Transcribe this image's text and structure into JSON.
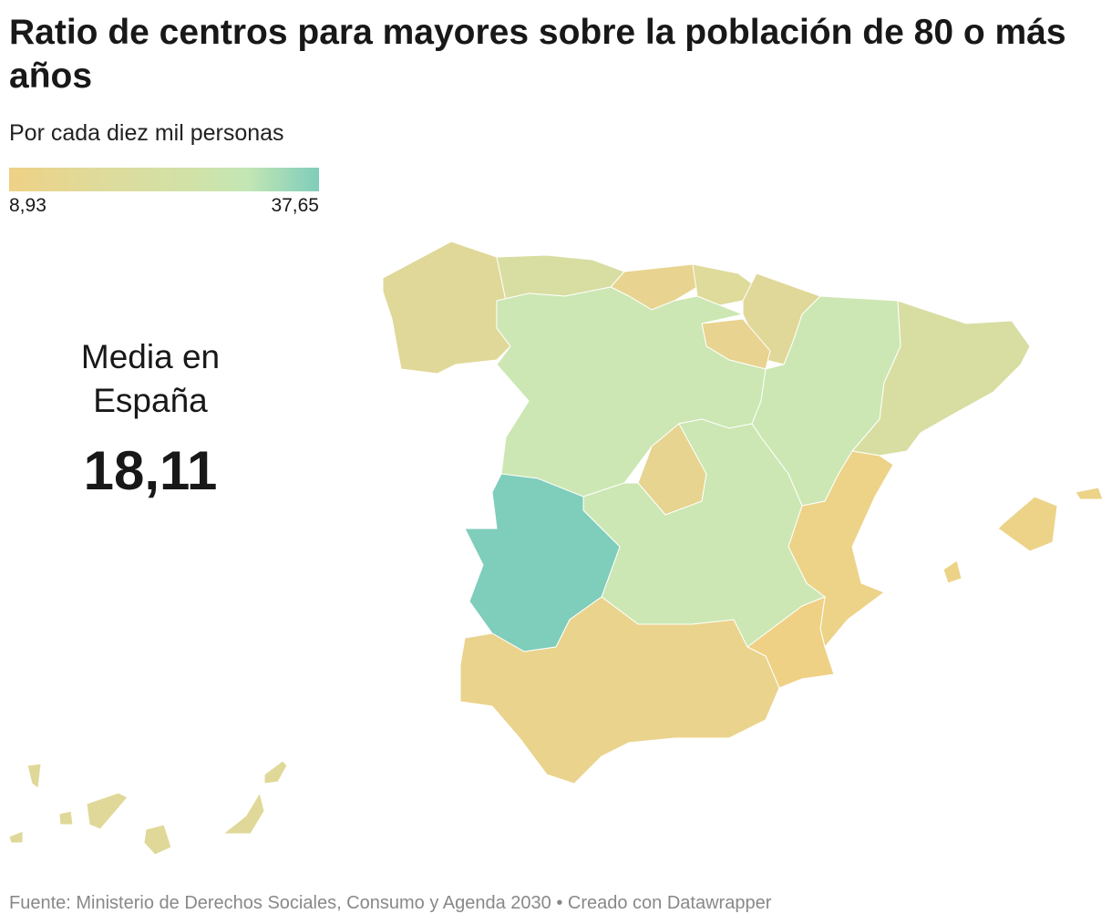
{
  "title": "Ratio de centros para mayores sobre la población de 80 o más años",
  "subtitle": "Por cada diez mil personas",
  "legend": {
    "min": "8,93",
    "max": "37,65",
    "colors": [
      "#efd186",
      "#c3e6b4",
      "#7fcdbb"
    ]
  },
  "average": {
    "label": "Media en España",
    "value": "18,11"
  },
  "regions": [
    {
      "name": "Galicia",
      "color": "#e0d898"
    },
    {
      "name": "Asturias",
      "color": "#d8dea2"
    },
    {
      "name": "Cantabria",
      "color": "#e8d490"
    },
    {
      "name": "País Vasco",
      "color": "#dedb9b"
    },
    {
      "name": "Navarra",
      "color": "#e0d898"
    },
    {
      "name": "La Rioja",
      "color": "#e8d490"
    },
    {
      "name": "Castilla y León",
      "color": "#cce7b3"
    },
    {
      "name": "Aragón",
      "color": "#cce7b3"
    },
    {
      "name": "Cataluña",
      "color": "#d8dea2"
    },
    {
      "name": "Madrid",
      "color": "#e6d490"
    },
    {
      "name": "Castilla-La Mancha",
      "color": "#cce7b3"
    },
    {
      "name": "Extremadura",
      "color": "#7fcdbb"
    },
    {
      "name": "Comunidad Valenciana",
      "color": "#ecd388"
    },
    {
      "name": "Murcia",
      "color": "#efd186"
    },
    {
      "name": "Andalucía",
      "color": "#ead38c"
    },
    {
      "name": "Baleares",
      "color": "#ecd388"
    },
    {
      "name": "Canarias",
      "color": "#e0d898"
    }
  ],
  "footer": "Fuente: Ministerio de Derechos Sociales, Consumo y Agenda 2030  • Creado con Datawrapper"
}
